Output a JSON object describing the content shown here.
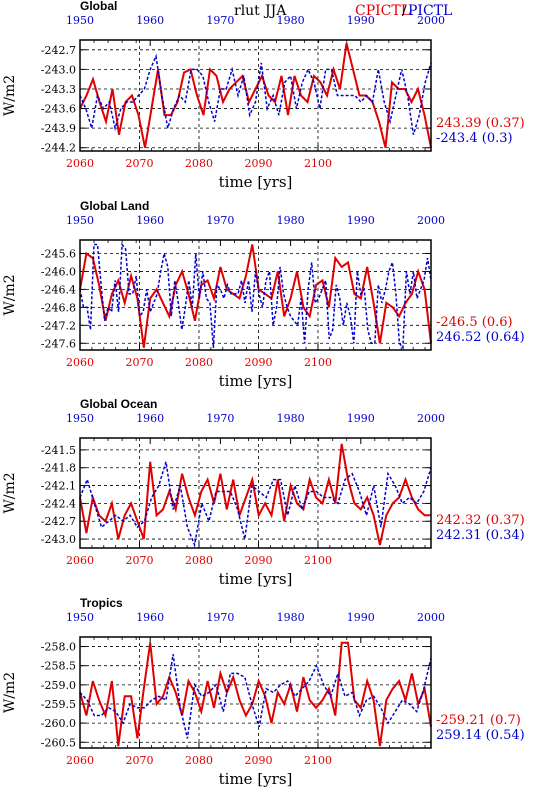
{
  "header": {
    "variable": "rlut",
    "season": "JJA",
    "legend_red": "CPICTL",
    "legend_sep": "/",
    "legend_blue": "PICTL"
  },
  "colors": {
    "red": "#e00000",
    "blue": "#0000cc"
  },
  "chart_data": [
    {
      "type": "line",
      "title": "Global",
      "ylabel": "W/m2",
      "xlabel": "time [yrs]",
      "x_bottom_ticks": [
        "2060",
        "2070",
        "2080",
        "2090",
        "2100"
      ],
      "x_top_ticks": [
        "1950",
        "1960",
        "1970",
        "1980",
        "1990",
        "2000"
      ],
      "ylim": [
        -244.25,
        -242.55
      ],
      "y_ticks": [
        -244.2,
        -243.9,
        -243.6,
        -243.3,
        -243.0,
        -242.7
      ],
      "y_tick_labels": [
        "-244.2",
        "-243.9",
        "-243.6",
        "-243.3",
        "-243.0",
        "-242.7"
      ],
      "stat_red": "243.39 (0.37)",
      "stat_blue": "-243.4 (0.3)",
      "series": [
        {
          "color": "red",
          "x_start": 2060,
          "values": [
            -243.6,
            -243.4,
            -243.15,
            -243.5,
            -243.8,
            -243.3,
            -244.0,
            -243.5,
            -243.4,
            -243.7,
            -244.2,
            -243.6,
            -243.0,
            -243.7,
            -243.7,
            -243.5,
            -243.05,
            -243.0,
            -243.4,
            -243.7,
            -243.0,
            -243.1,
            -243.5,
            -243.3,
            -243.2,
            -243.1,
            -243.5,
            -243.3,
            -243.1,
            -243.4,
            -243.5,
            -243.1,
            -243.7,
            -243.1,
            -243.4,
            -243.5,
            -243.1,
            -243.2,
            -243.4,
            -243.0,
            -243.3,
            -242.6,
            -243.0,
            -243.4,
            -243.4,
            -243.5,
            -243.8,
            -244.2,
            -243.2,
            -243.3,
            -243.3,
            -243.5,
            -243.3,
            -243.7,
            -244.2
          ]
        },
        {
          "color": "blue",
          "x_start": 1950,
          "values": [
            -243.4,
            -243.6,
            -243.9,
            -243.4,
            -243.6,
            -243.5,
            -243.9,
            -243.6,
            -243.5,
            -243.5,
            -243.4,
            -243.3,
            -243.0,
            -242.8,
            -243.4,
            -243.9,
            -243.6,
            -243.4,
            -243.5,
            -243.0,
            -243.0,
            -243.1,
            -243.5,
            -243.8,
            -243.3,
            -243.3,
            -243.0,
            -243.4,
            -243.1,
            -243.7,
            -243.5,
            -242.9,
            -243.6,
            -243.4,
            -243.7,
            -243.2,
            -243.1,
            -243.6,
            -243.2,
            -243.0,
            -243.2,
            -243.6,
            -243.0,
            -243.0,
            -243.4,
            -243.4,
            -243.4,
            -243.4,
            -243.5,
            -243.4,
            -243.5,
            -243.0,
            -243.5,
            -243.8,
            -243.4,
            -243.0,
            -243.4,
            -244.0,
            -243.7,
            -243.2,
            -242.9
          ]
        }
      ]
    },
    {
      "type": "line",
      "title": "Global Land",
      "ylabel": "W/m2",
      "xlabel": "time [yrs]",
      "x_bottom_ticks": [
        "2060",
        "2070",
        "2080",
        "2090",
        "2100"
      ],
      "x_top_ticks": [
        "1950",
        "1960",
        "1970",
        "1980",
        "1990",
        "2000"
      ],
      "ylim": [
        -247.75,
        -245.3
      ],
      "y_ticks": [
        -247.6,
        -247.2,
        -246.8,
        -246.4,
        -246.0,
        -245.6
      ],
      "y_tick_labels": [
        "-247.6",
        "-247.2",
        "-246.8",
        "-246.4",
        "-246.0",
        "-245.6"
      ],
      "stat_red": "-246.5 (0.6)",
      "stat_blue": "246.52 (0.64)",
      "series": [
        {
          "color": "red",
          "x_start": 2060,
          "values": [
            -246.4,
            -245.6,
            -245.7,
            -246.3,
            -247.1,
            -246.5,
            -246.2,
            -246.7,
            -246.1,
            -246.6,
            -247.7,
            -246.6,
            -246.4,
            -246.7,
            -247.0,
            -246.3,
            -246.0,
            -246.5,
            -247.1,
            -246.3,
            -246.2,
            -246.6,
            -245.9,
            -246.4,
            -246.5,
            -246.6,
            -246.1,
            -245.4,
            -246.4,
            -246.5,
            -246.6,
            -246.0,
            -247.0,
            -246.6,
            -246.0,
            -246.8,
            -247.0,
            -246.3,
            -246.2,
            -246.8,
            -245.7,
            -245.9,
            -245.8,
            -246.5,
            -246.6,
            -245.9,
            -246.7,
            -247.6,
            -246.7,
            -246.8,
            -247.0,
            -246.7,
            -246.5,
            -246.0,
            -246.4,
            -247.6
          ]
        },
        {
          "color": "blue",
          "x_start": 1950,
          "values": [
            -246.4,
            -246.8,
            -246.8,
            -247.3,
            -245.4,
            -245.4,
            -246.3,
            -247.1,
            -246.8,
            -246.9,
            -246.2,
            -246.9,
            -245.4,
            -245.5,
            -246.5,
            -246.5,
            -246.1,
            -247.0,
            -246.9,
            -246.4,
            -246.9,
            -246.7,
            -246.5,
            -246.0,
            -245.6,
            -245.9,
            -247.0,
            -246.2,
            -246.7,
            -247.3,
            -246.8,
            -246.2,
            -246.8,
            -245.6,
            -246.6,
            -246.0,
            -246.6,
            -246.7,
            -247.7,
            -246.3,
            -246.4,
            -246.6,
            -246.3,
            -246.5,
            -246.5,
            -246.5,
            -246.2,
            -246.7,
            -246.2,
            -246.9,
            -246.0,
            -246.5,
            -246.8,
            -246.2,
            -246.0,
            -247.2,
            -246.8,
            -245.9,
            -246.5,
            -246.8,
            -247.0,
            -247.1,
            -247.2,
            -246.6,
            -247.6,
            -246.4,
            -245.8,
            -246.7,
            -246.6,
            -246.4,
            -246.2,
            -247.5,
            -247.3,
            -246.3,
            -246.6,
            -247.2,
            -246.7,
            -247.0,
            -247.6,
            -246.0,
            -246.5,
            -246.4,
            -247.3,
            -247.6,
            -247.6,
            -246.3,
            -246.7,
            -246.4,
            -246.0,
            -245.8,
            -246.5,
            -247.6,
            -247.7,
            -246.0,
            -246.5,
            -246.0,
            -246.6,
            -246.4,
            -246.2,
            -245.7,
            -246.2
          ]
        }
      ]
    },
    {
      "type": "line",
      "title": "Global Ocean",
      "ylabel": "W/m2",
      "xlabel": "time [yrs]",
      "x_bottom_ticks": [
        "2060",
        "2070",
        "2080",
        "2090",
        "2100"
      ],
      "x_top_ticks": [
        "1950",
        "1960",
        "1970",
        "1980",
        "1990",
        "2000"
      ],
      "ylim": [
        -243.15,
        -241.3
      ],
      "y_ticks": [
        -243.0,
        -242.7,
        -242.4,
        -242.1,
        -241.8,
        -241.5
      ],
      "y_tick_labels": [
        "-243.0",
        "-242.7",
        "-242.4",
        "-242.1",
        "-241.8",
        "-241.5"
      ],
      "stat_red": "242.32 (0.37)",
      "stat_blue": "242.31 (0.34)",
      "series": [
        {
          "color": "red",
          "x_start": 2060,
          "values": [
            -242.3,
            -242.9,
            -242.3,
            -242.6,
            -242.7,
            -242.4,
            -243.0,
            -242.6,
            -242.4,
            -242.7,
            -243.0,
            -241.7,
            -242.6,
            -242.5,
            -242.2,
            -242.5,
            -241.9,
            -242.3,
            -242.6,
            -242.2,
            -242.0,
            -242.4,
            -241.9,
            -242.5,
            -242.0,
            -242.6,
            -242.3,
            -242.0,
            -242.6,
            -242.4,
            -242.6,
            -242.0,
            -242.7,
            -242.1,
            -242.4,
            -242.5,
            -242.0,
            -242.3,
            -242.4,
            -242.0,
            -242.4,
            -241.4,
            -242.0,
            -242.4,
            -242.5,
            -242.3,
            -242.6,
            -243.1,
            -242.6,
            -242.4,
            -242.3,
            -242.0,
            -242.3,
            -242.5,
            -242.6,
            -242.6
          ]
        },
        {
          "color": "blue",
          "x_start": 1950,
          "values": [
            -242.3,
            -242.0,
            -242.4,
            -242.8,
            -242.7,
            -242.6,
            -242.7,
            -242.6,
            -242.8,
            -242.7,
            -242.3,
            -242.1,
            -241.7,
            -242.5,
            -242.1,
            -242.8,
            -243.1,
            -242.4,
            -242.7,
            -242.2,
            -242.2,
            -242.2,
            -242.5,
            -243.0,
            -242.1,
            -242.2,
            -242.3,
            -242.0,
            -242.0,
            -242.6,
            -242.1,
            -242.5,
            -242.2,
            -242.2,
            -242.3,
            -242.3,
            -242.4,
            -242.0,
            -241.9,
            -242.2,
            -242.6,
            -242.1,
            -242.8,
            -241.9,
            -242.1,
            -242.4,
            -242.3,
            -242.4,
            -242.2,
            -241.8
          ]
        }
      ]
    },
    {
      "type": "line",
      "title": "Tropics",
      "ylabel": "W/m2",
      "xlabel": "time [yrs]",
      "x_bottom_ticks": [
        "2060",
        "2070",
        "2080",
        "2090",
        "2100"
      ],
      "x_top_ticks": [
        "1950",
        "1960",
        "1970",
        "1980",
        "1990",
        "2000"
      ],
      "ylim": [
        -260.65,
        -257.75
      ],
      "y_ticks": [
        -260.5,
        -260.0,
        -259.5,
        -259.0,
        -258.5,
        -258.0
      ],
      "y_tick_labels": [
        "-260.5",
        "-260.0",
        "-259.5",
        "-259.0",
        "-258.5",
        "-258.0"
      ],
      "stat_red": "-259.21 (0.7)",
      "stat_blue": "259.14 (0.54)",
      "series": [
        {
          "color": "red",
          "x_start": 2060,
          "values": [
            -259.2,
            -259.8,
            -258.9,
            -259.4,
            -259.8,
            -258.9,
            -260.6,
            -259.3,
            -259.3,
            -260.4,
            -259.1,
            -257.9,
            -259.5,
            -259.3,
            -258.8,
            -259.2,
            -259.8,
            -258.9,
            -259.2,
            -259.7,
            -258.9,
            -259.6,
            -258.7,
            -259.2,
            -258.8,
            -259.4,
            -259.8,
            -259.5,
            -258.9,
            -259.3,
            -260.0,
            -259.2,
            -259.5,
            -259.0,
            -259.7,
            -258.8,
            -259.4,
            -259.6,
            -259.4,
            -259.1,
            -259.8,
            -257.9,
            -257.9,
            -259.4,
            -259.6,
            -258.9,
            -259.4,
            -260.6,
            -259.4,
            -259.1,
            -258.9,
            -259.4,
            -258.7,
            -259.5,
            -259.1,
            -260.1
          ]
        },
        {
          "color": "blue",
          "x_start": 1950,
          "values": [
            -259.2,
            -259.4,
            -259.8,
            -259.8,
            -259.6,
            -259.7,
            -260.0,
            -259.5,
            -259.6,
            -259.6,
            -259.4,
            -259.3,
            -259.4,
            -258.2,
            -259.6,
            -260.4,
            -259.0,
            -259.3,
            -259.2,
            -259.0,
            -259.7,
            -258.7,
            -258.7,
            -258.8,
            -259.5,
            -260.1,
            -259.1,
            -259.2,
            -259.0,
            -258.9,
            -259.3,
            -259.1,
            -258.9,
            -258.5,
            -259.0,
            -259.3,
            -258.7,
            -259.3,
            -259.2,
            -259.8,
            -259.4,
            -259.3,
            -259.6,
            -260.0,
            -259.7,
            -259.4,
            -259.5,
            -259.7,
            -259.1,
            -258.3
          ]
        }
      ]
    }
  ]
}
